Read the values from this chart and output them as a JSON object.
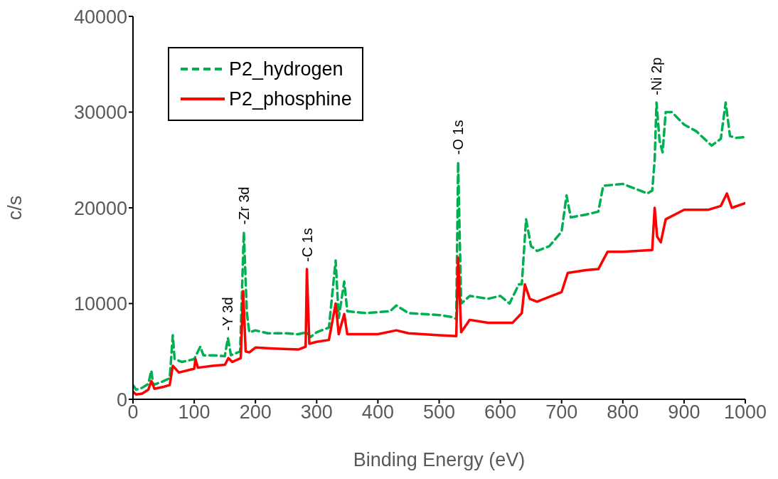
{
  "chart_data": {
    "type": "line",
    "xlabel": "Binding Energy (eV)",
    "ylabel": "c/s",
    "xlim": [
      0,
      1000
    ],
    "xticks": [
      0,
      100,
      200,
      300,
      400,
      500,
      600,
      700,
      800,
      900,
      1000
    ],
    "ylim": [
      0,
      40000
    ],
    "yticks": [
      0,
      10000,
      20000,
      30000,
      40000
    ],
    "grid": false,
    "legend": "top left",
    "marker": "none",
    "annotations": [
      {
        "text": "-Y 3d",
        "x": 155,
        "y": 6400
      },
      {
        "text": "-Zr 3d",
        "x": 181,
        "y": 17500
      },
      {
        "text": "-C 1s",
        "x": 284,
        "y": 13600
      },
      {
        "text": "-O 1s",
        "x": 531,
        "y": 24800
      },
      {
        "text": "-Ni 2p",
        "x": 855,
        "y": 31000
      }
    ],
    "series": [
      {
        "name": "P2_hydrogen",
        "color": "#00b050",
        "line_style": "dashed",
        "x": [
          0,
          5,
          15,
          25,
          30,
          33,
          50,
          60,
          65,
          68,
          80,
          100,
          110,
          115,
          130,
          150,
          155,
          160,
          175,
          181,
          186,
          190,
          200,
          220,
          250,
          270,
          284,
          290,
          300,
          320,
          331,
          336,
          345,
          350,
          380,
          420,
          430,
          450,
          500,
          520,
          528,
          531,
          536,
          550,
          580,
          600,
          615,
          630,
          635,
          642,
          650,
          660,
          680,
          700,
          708,
          715,
          740,
          760,
          768,
          800,
          840,
          848,
          852,
          855,
          860,
          865,
          870,
          880,
          900,
          920,
          945,
          960,
          968,
          975,
          985,
          1000
        ],
        "values": [
          1500,
          1000,
          1200,
          1600,
          3000,
          1500,
          1900,
          2200,
          6700,
          4200,
          3900,
          4200,
          5500,
          4600,
          4600,
          4500,
          6400,
          4600,
          5000,
          17500,
          9000,
          7000,
          7200,
          6900,
          6900,
          6800,
          7000,
          6500,
          7000,
          7500,
          14500,
          8500,
          12300,
          9200,
          9000,
          9200,
          9800,
          9000,
          8800,
          8600,
          8400,
          24800,
          10000,
          10800,
          10500,
          10800,
          10000,
          12000,
          12000,
          18800,
          16000,
          15500,
          16000,
          17500,
          21300,
          19000,
          19300,
          19600,
          22300,
          22500,
          21500,
          21800,
          25000,
          31000,
          27000,
          25800,
          30000,
          30000,
          28700,
          28000,
          26500,
          27200,
          31000,
          27500,
          27300,
          27400
        ]
      },
      {
        "name": "P2_phosphine",
        "color": "#ff0000",
        "line_style": "solid",
        "x": [
          0,
          5,
          15,
          25,
          30,
          35,
          50,
          60,
          65,
          75,
          100,
          102,
          106,
          130,
          150,
          156,
          162,
          176,
          180,
          184,
          190,
          200,
          230,
          270,
          282,
          284,
          288,
          300,
          320,
          331,
          336,
          345,
          350,
          400,
          430,
          450,
          500,
          528,
          531,
          536,
          550,
          580,
          620,
          635,
          640,
          648,
          660,
          700,
          710,
          740,
          760,
          775,
          800,
          848,
          852,
          856,
          862,
          870,
          900,
          940,
          960,
          970,
          978,
          1000
        ],
        "values": [
          800,
          500,
          600,
          1000,
          1900,
          1100,
          1300,
          1500,
          3500,
          2800,
          3200,
          4200,
          3300,
          3500,
          3600,
          4300,
          3900,
          4300,
          11300,
          5000,
          4900,
          5400,
          5300,
          5200,
          5500,
          13600,
          5800,
          6000,
          6200,
          10000,
          6800,
          8900,
          6800,
          6800,
          7200,
          6900,
          6700,
          6600,
          14800,
          7000,
          8300,
          8000,
          8000,
          9000,
          12000,
          10500,
          10200,
          11200,
          13200,
          13500,
          13600,
          15400,
          15400,
          15600,
          20000,
          17000,
          16400,
          18800,
          19800,
          19800,
          20200,
          21500,
          20000,
          20500
        ]
      }
    ]
  }
}
